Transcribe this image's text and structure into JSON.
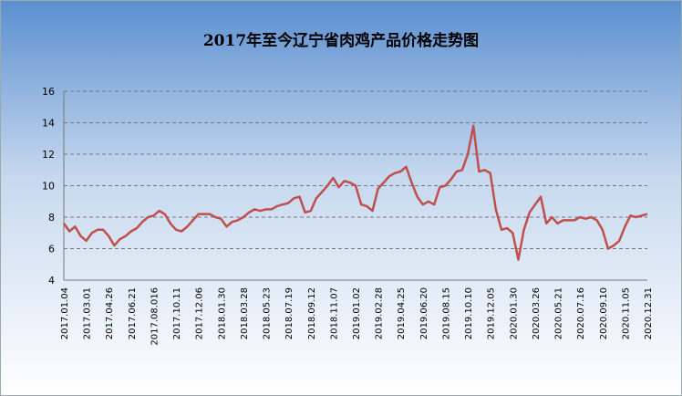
{
  "chart_data": {
    "type": "line",
    "title": "2017年至今辽宁省肉鸡产品价格走势图",
    "categories": [
      "2017.01.04",
      null,
      null,
      null,
      "2017.03.01",
      null,
      null,
      null,
      "2017.04.26",
      null,
      null,
      null,
      "2017.06.21",
      null,
      null,
      null,
      "2017.08.016",
      null,
      null,
      null,
      "2017.10.11",
      null,
      null,
      null,
      "2017.12.06",
      null,
      null,
      null,
      "2018.01.30",
      null,
      null,
      null,
      "2018.03.28",
      null,
      null,
      null,
      "2018.05.23",
      null,
      null,
      null,
      "2018.07.19",
      null,
      null,
      null,
      "2018.09.12",
      null,
      null,
      null,
      "2018.11.07",
      null,
      null,
      null,
      "2019.01.02",
      null,
      null,
      null,
      "2019.02.28",
      null,
      null,
      null,
      "2019.04.25",
      null,
      null,
      null,
      "2019.06.20",
      null,
      null,
      null,
      "2019.08.15",
      null,
      null,
      null,
      "2019.10.10",
      null,
      null,
      null,
      "2019.12.05",
      null,
      null,
      null,
      "2020.01.30",
      null,
      null,
      null,
      "2020.03.26",
      null,
      null,
      null,
      "2020.05.21",
      null,
      null,
      null,
      "2020.07.16",
      null,
      null,
      null,
      "2020.09.10",
      null,
      null,
      null,
      "2020.11.05",
      null,
      null,
      null,
      "2020.12.31"
    ],
    "values": [
      7.6,
      7.1,
      7.4,
      6.8,
      6.5,
      7.0,
      7.2,
      7.2,
      6.8,
      6.2,
      6.6,
      6.8,
      7.1,
      7.3,
      7.7,
      8.0,
      8.1,
      8.4,
      8.2,
      7.6,
      7.2,
      7.1,
      7.4,
      7.8,
      8.2,
      8.2,
      8.2,
      8.0,
      7.9,
      7.4,
      7.7,
      7.8,
      8.0,
      8.3,
      8.5,
      8.4,
      8.5,
      8.5,
      8.7,
      8.8,
      8.9,
      9.2,
      9.3,
      8.3,
      8.4,
      9.2,
      9.6,
      10.0,
      10.5,
      9.9,
      10.3,
      10.2,
      10.0,
      8.8,
      8.7,
      8.4,
      9.8,
      10.2,
      10.6,
      10.8,
      10.9,
      11.2,
      10.2,
      9.3,
      8.8,
      9.0,
      8.8,
      9.9,
      10.0,
      10.4,
      10.9,
      11.0,
      12.0,
      13.8,
      10.9,
      11.0,
      10.8,
      8.5,
      7.2,
      7.3,
      7.0,
      5.3,
      7.2,
      8.3,
      8.8,
      9.3,
      7.6,
      8.0,
      7.6,
      7.8,
      7.8,
      7.8,
      8.0,
      7.9,
      8.0,
      7.8,
      7.2,
      6.0,
      6.2,
      6.5,
      7.4,
      8.1,
      8.0,
      8.1,
      8.2
    ],
    "color": "#c0504d",
    "ylim": [
      4,
      16
    ],
    "yticks": [
      4,
      6,
      8,
      10,
      12,
      14,
      16
    ],
    "grid": true
  }
}
